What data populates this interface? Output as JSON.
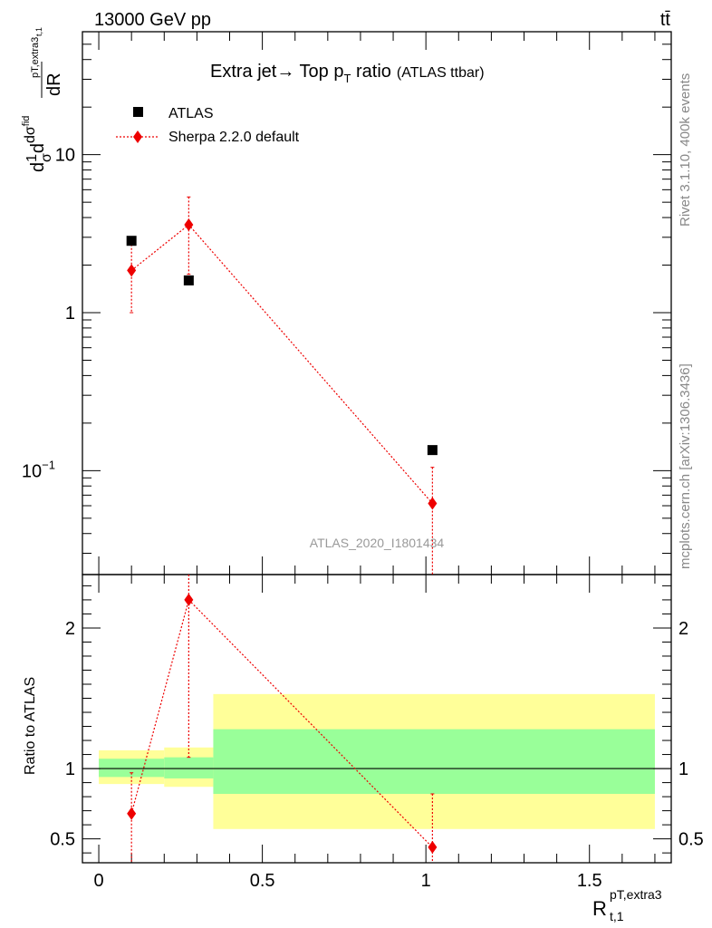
{
  "header": {
    "energy_label": "13000 GeV pp",
    "process_label": "tt̄"
  },
  "side_labels": {
    "rivet": "Rivet 3.1.10,  400k events",
    "mcplots": "mcplots.cern.ch [arXiv:1306.3436]"
  },
  "watermark": "ATLAS_2020_I1801434",
  "chart_data": [
    {
      "type": "scatter",
      "panel": "main",
      "title": "Extra jet→ Top pT ratio",
      "title_parts": {
        "main": "Extra jet",
        "arrow": "→",
        "top": " Top p",
        "sub": "T",
        "rest": " ratio",
        "small": "(ATLAS ttbar)"
      },
      "ylabel": "1/σ dσ^fid/dR^{pT,extra3}_{t,1}",
      "ylabel_parts": {
        "d": "d",
        "num": "1",
        "den": "σ",
        "dsig": "dσ",
        "fid": "fid",
        "sub": "pT,extra3",
        "subsub": "t,1",
        "dR": "dR"
      },
      "yscale": "log",
      "ylim": [
        0.022,
        60
      ],
      "xlim": [
        -0.05,
        1.75
      ],
      "y_tick_labels": [
        {
          "v": 10,
          "label": "10"
        },
        {
          "v": 1,
          "label": "1"
        },
        {
          "v": 0.1,
          "label": "10",
          "exp": "−1"
        }
      ],
      "legend_position": "top-left",
      "series": [
        {
          "name": "ATLAS",
          "marker": "square",
          "color": "#000000",
          "points": [
            {
              "x": 0.1,
              "y": 2.85
            },
            {
              "x": 0.275,
              "y": 1.6
            },
            {
              "x": 1.02,
              "y": 0.135
            }
          ]
        },
        {
          "name": "Sherpa 2.2.0 default",
          "marker": "diamond",
          "color": "#ee0000",
          "line": "dotted",
          "points": [
            {
              "x": 0.1,
              "y": 1.85,
              "ylo": 1.0,
              "yhi": 2.7
            },
            {
              "x": 0.275,
              "y": 3.6,
              "ylo": 1.75,
              "yhi": 5.4
            },
            {
              "x": 1.02,
              "y": 0.062,
              "ylo": 0.001,
              "yhi": 0.105
            }
          ]
        }
      ]
    },
    {
      "type": "scatter",
      "panel": "ratio",
      "ylabel": "Ratio to ATLAS",
      "xlabel": "R^{pT,extra3}_{t,1}",
      "xlabel_parts": {
        "R": "R",
        "sup": "pT,extra3",
        "sub": "t,1"
      },
      "xlim": [
        -0.05,
        1.75
      ],
      "ylim": [
        0.33,
        2.38
      ],
      "x_ticks": [
        {
          "v": 0,
          "label": "0"
        },
        {
          "v": 0.5,
          "label": "0.5"
        },
        {
          "v": 1,
          "label": "1"
        },
        {
          "v": 1.5,
          "label": "1.5"
        }
      ],
      "y_ticks": [
        {
          "v": 0.5,
          "label": "0.5"
        },
        {
          "v": 1,
          "label": "1"
        },
        {
          "v": 2,
          "label": "2"
        }
      ],
      "reference_line": 1,
      "uncertainty_bands": [
        {
          "x0": 0.0,
          "x1": 0.2,
          "inner": [
            0.94,
            1.07
          ],
          "outer": [
            0.89,
            1.13
          ]
        },
        {
          "x0": 0.2,
          "x1": 0.35,
          "inner": [
            0.93,
            1.08
          ],
          "outer": [
            0.87,
            1.15
          ]
        },
        {
          "x0": 0.35,
          "x1": 1.7,
          "inner": [
            0.82,
            1.28
          ],
          "outer": [
            0.57,
            1.53
          ]
        }
      ],
      "band_colors": {
        "inner": "#99ff99",
        "outer": "#ffff99"
      },
      "series": [
        {
          "name": "Sherpa 2.2.0 default",
          "color": "#ee0000",
          "points": [
            {
              "x": 0.1,
              "y": 0.68,
              "ylo": 0.3,
              "yhi": 0.97
            },
            {
              "x": 0.275,
              "y": 2.2,
              "ylo": 1.08,
              "yhi": 2.5
            },
            {
              "x": 1.02,
              "y": 0.44,
              "ylo": 0.3,
              "yhi": 0.82
            }
          ]
        }
      ]
    }
  ]
}
